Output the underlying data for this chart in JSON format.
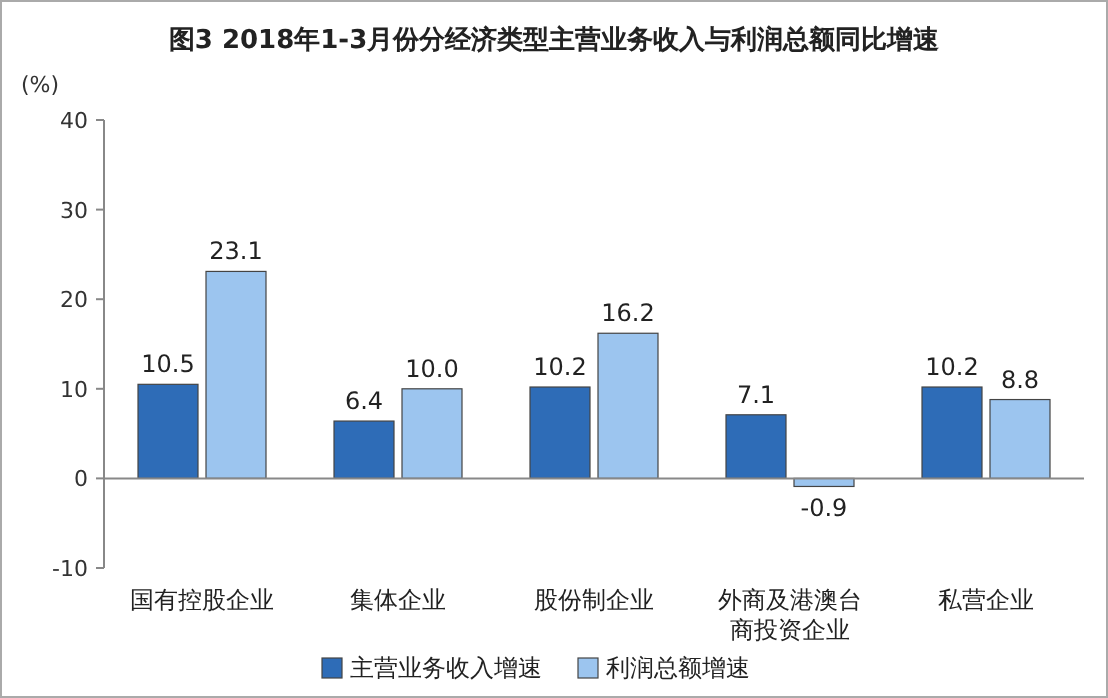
{
  "chart_data": {
    "type": "bar",
    "title": "图3 2018年1-3月份分经济类型主营业务收入与利润总额同比增速",
    "ylabel": "(%)",
    "categories": [
      "国有控股企业",
      "集体企业",
      "股份制企业",
      "外商及港澳台商投资企业",
      "私营企业"
    ],
    "series": [
      {
        "name": "主营业务收入增速",
        "color": "#2e6cb7",
        "values": [
          10.5,
          6.4,
          10.2,
          7.1,
          10.2
        ],
        "value_labels": [
          "10.5",
          "6.4",
          "10.2",
          "7.1",
          "10.2"
        ]
      },
      {
        "name": "利润总额增速",
        "color": "#9cc5ef",
        "values": [
          23.1,
          10.0,
          16.2,
          -0.9,
          8.8
        ],
        "value_labels": [
          "23.1",
          "10.0",
          "16.2",
          "-0.9",
          "8.8"
        ]
      }
    ],
    "ylim": [
      -10,
      40
    ],
    "yticks": [
      -10,
      0,
      10,
      20,
      30,
      40
    ],
    "legend": "bottom"
  }
}
